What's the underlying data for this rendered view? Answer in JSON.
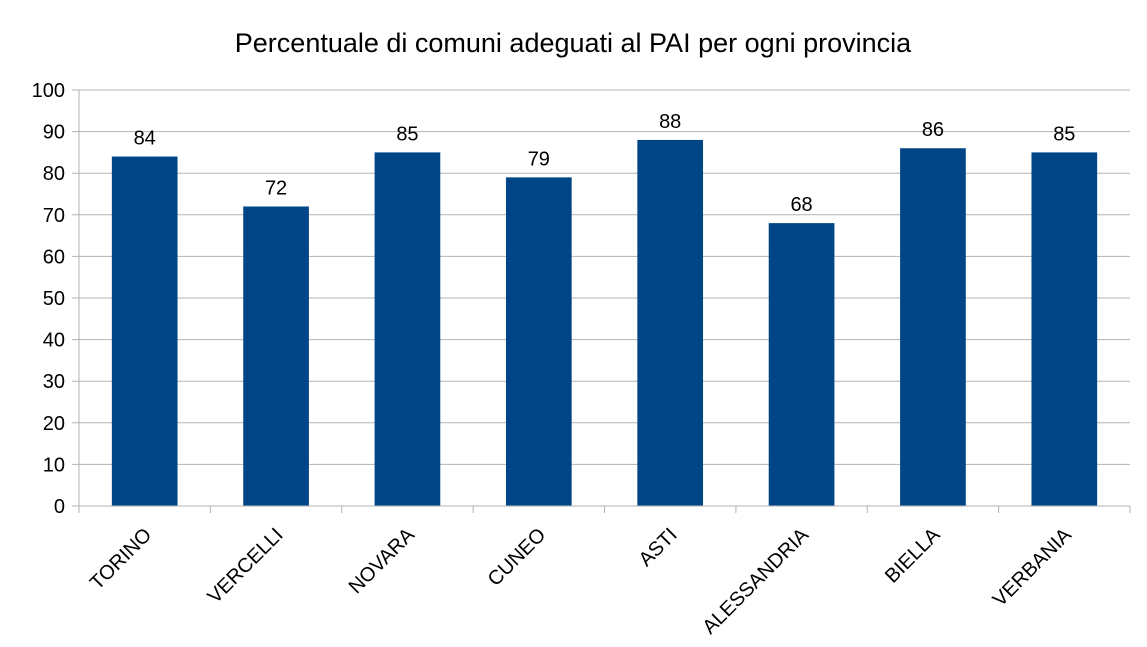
{
  "chart_data": {
    "type": "bar",
    "title": "Percentuale di comuni adeguati al PAI per ogni provincia",
    "xlabel": "",
    "ylabel": "",
    "categories": [
      "TORINO",
      "VERCELLI",
      "NOVARA",
      "CUNEO",
      "ASTI",
      "ALESSANDRIA",
      "BIELLA",
      "VERBANIA"
    ],
    "values": [
      84,
      72,
      85,
      79,
      88,
      68,
      86,
      85
    ],
    "data_labels": [
      "84",
      "72",
      "85",
      "79",
      "88",
      "68",
      "86",
      "85"
    ],
    "ylim": [
      0,
      100
    ],
    "yticks": [
      0,
      10,
      20,
      30,
      40,
      50,
      60,
      70,
      80,
      90,
      100
    ],
    "grid": true,
    "legend": "none",
    "bar_color": "#004586"
  }
}
